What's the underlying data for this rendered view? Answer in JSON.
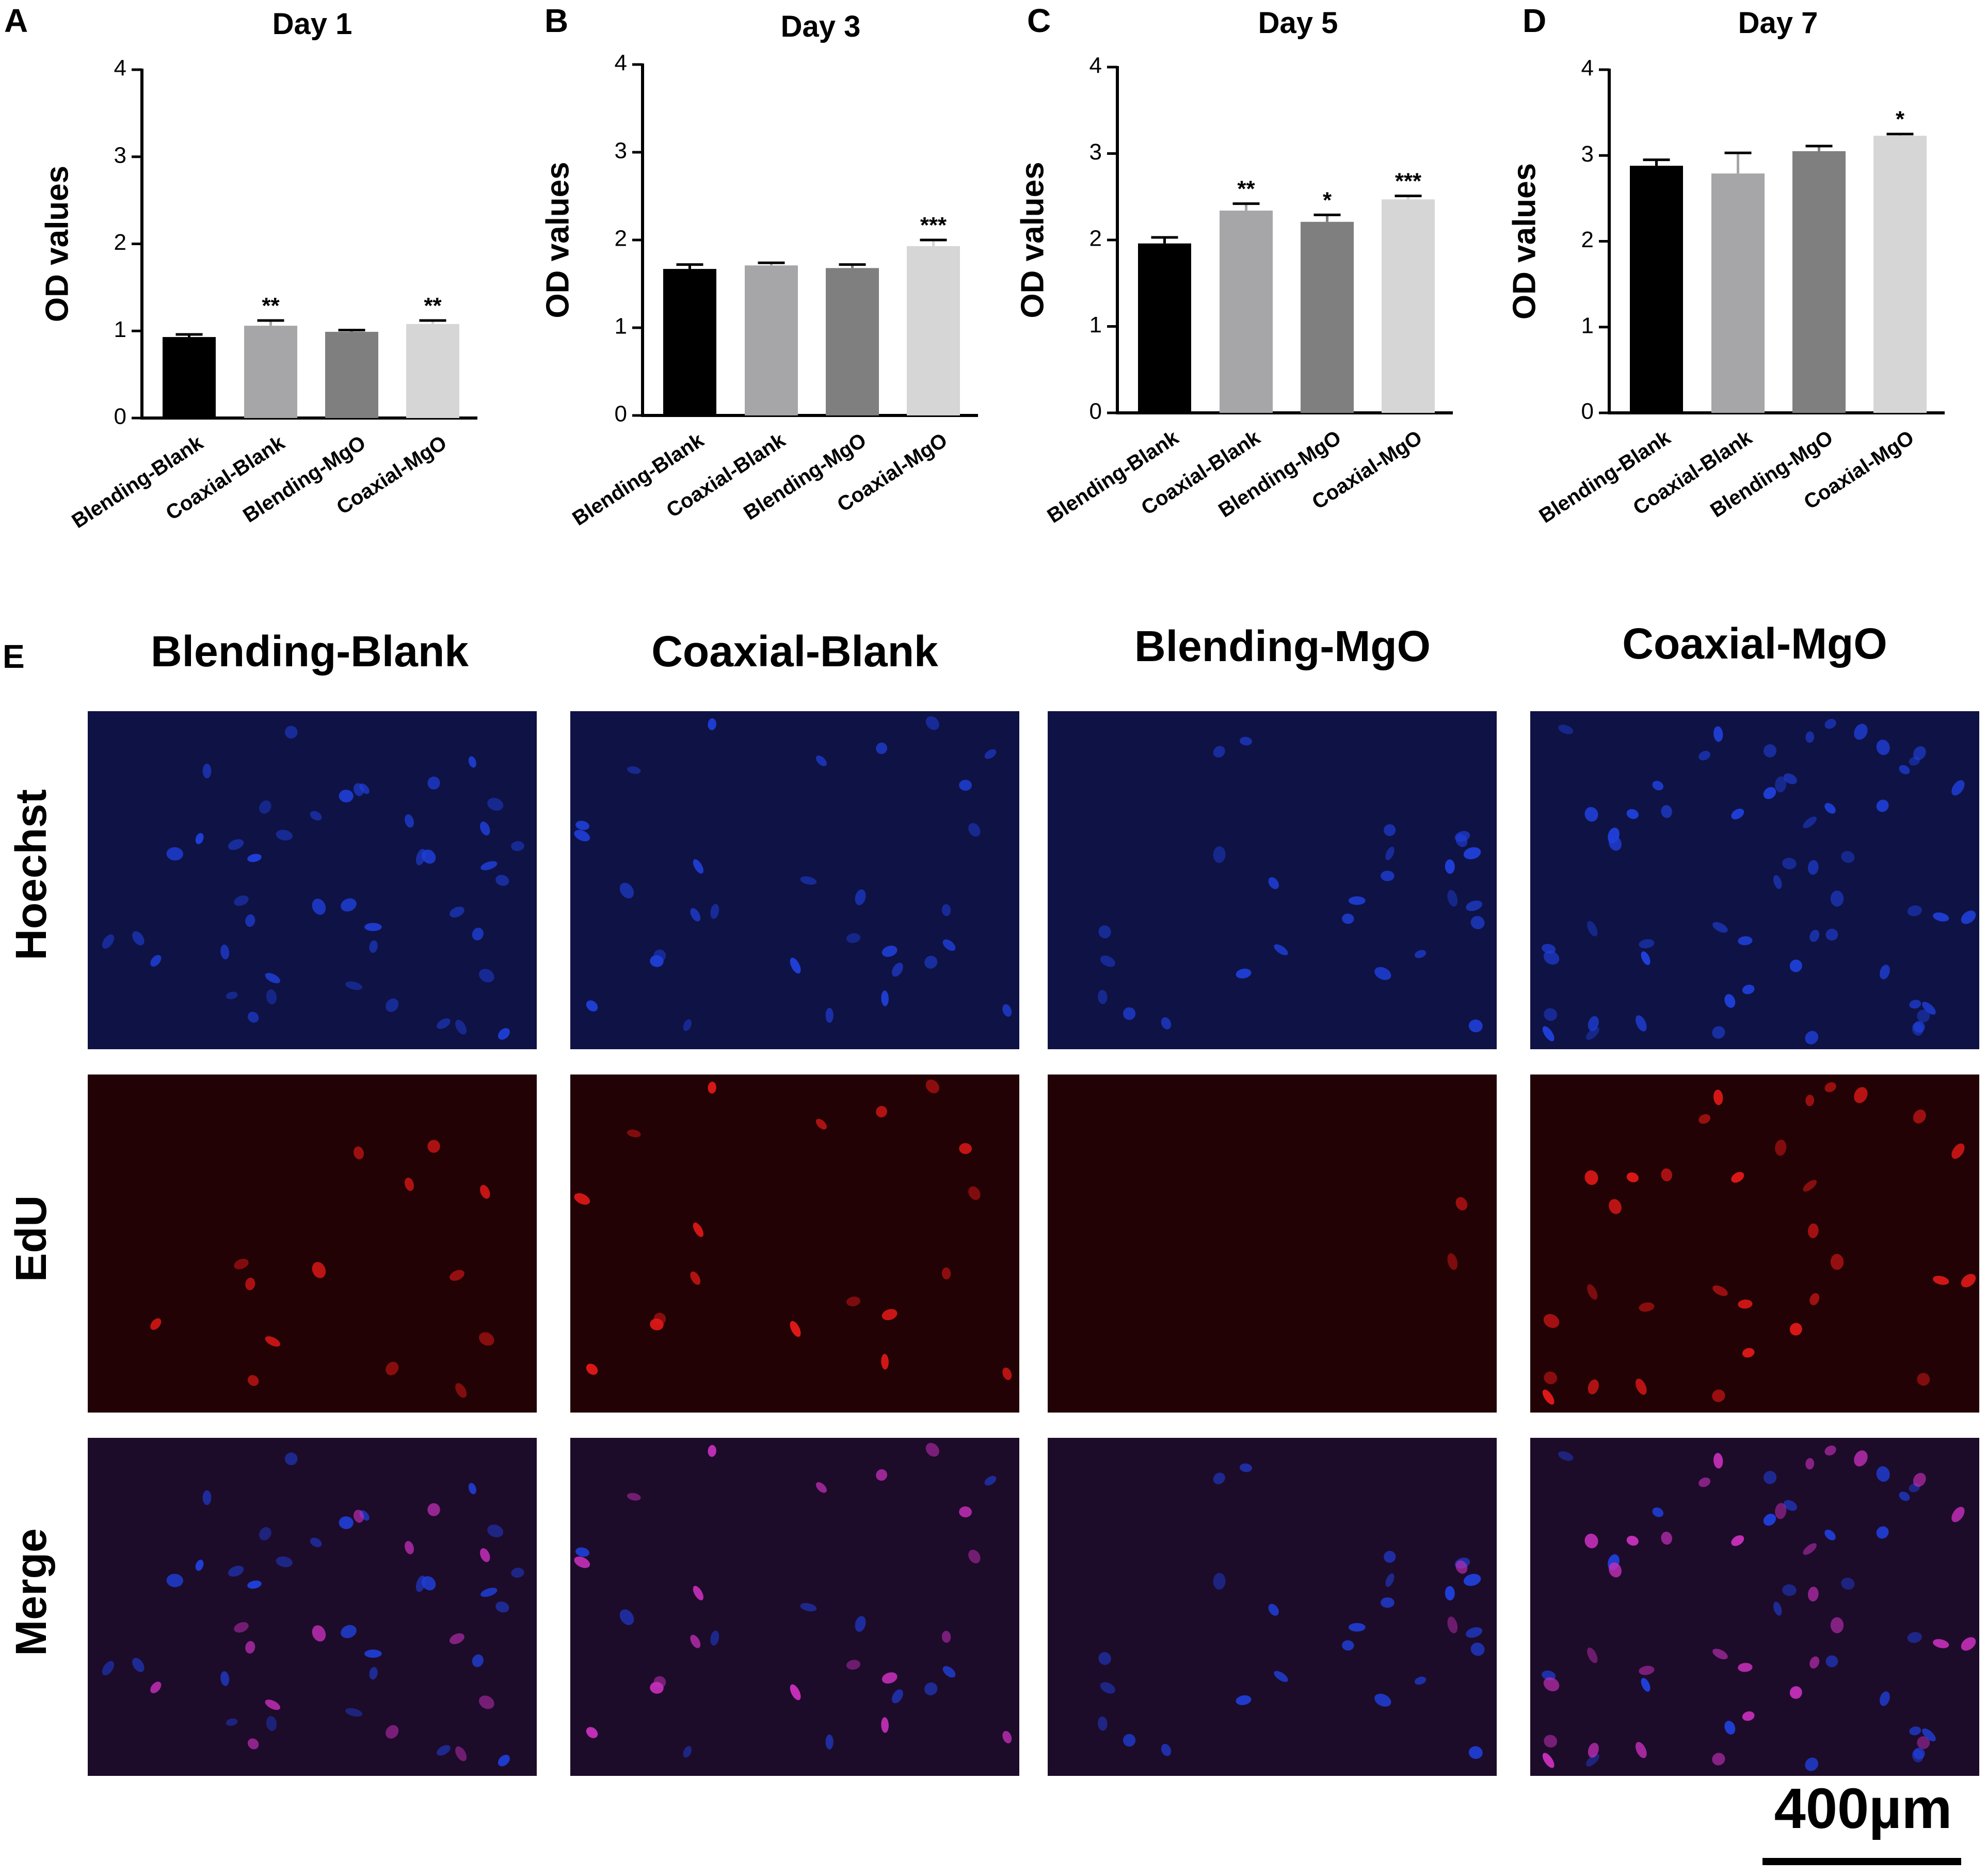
{
  "panels": [
    "A",
    "B",
    "C",
    "D",
    "E"
  ],
  "chart_data": [
    {
      "type": "bar",
      "title": "Day 1",
      "ylabel": "OD values",
      "categories": [
        "Blending-Blank",
        "Coaxial-Blank",
        "Blending-MgO",
        "Coaxial-MgO"
      ],
      "values": [
        0.93,
        1.06,
        0.99,
        1.08
      ],
      "errors": [
        0.03,
        0.06,
        0.02,
        0.04
      ],
      "significance": [
        "",
        "**",
        "",
        "**"
      ],
      "colors": [
        "#000000",
        "#a6a6a8",
        "#7f7f7f",
        "#d6d6d6"
      ],
      "ylim": [
        0,
        4
      ],
      "yticks": [
        "0",
        "1",
        "2",
        "3",
        "4"
      ],
      "grid": false
    },
    {
      "type": "bar",
      "title": "Day 3",
      "ylabel": "OD values",
      "categories": [
        "Blending-Blank",
        "Coaxial-Blank",
        "Blending-MgO",
        "Coaxial-MgO"
      ],
      "values": [
        1.67,
        1.71,
        1.68,
        1.93
      ],
      "errors": [
        0.05,
        0.03,
        0.04,
        0.07
      ],
      "significance": [
        "",
        "",
        "",
        "***"
      ],
      "colors": [
        "#000000",
        "#a6a6a8",
        "#7f7f7f",
        "#d6d6d6"
      ],
      "ylim": [
        0,
        4
      ],
      "yticks": [
        "0",
        "1",
        "2",
        "3",
        "4"
      ],
      "grid": false
    },
    {
      "type": "bar",
      "title": "Day 5",
      "ylabel": "OD values",
      "categories": [
        "Blending-Blank",
        "Coaxial-Blank",
        "Blending-MgO",
        "Coaxial-MgO"
      ],
      "values": [
        1.96,
        2.34,
        2.21,
        2.47
      ],
      "errors": [
        0.07,
        0.08,
        0.08,
        0.04
      ],
      "significance": [
        "",
        "**",
        "*",
        "***"
      ],
      "colors": [
        "#000000",
        "#a6a6a8",
        "#7f7f7f",
        "#d6d6d6"
      ],
      "ylim": [
        0,
        4
      ],
      "yticks": [
        "0",
        "1",
        "2",
        "3",
        "4"
      ],
      "grid": false
    },
    {
      "type": "bar",
      "title": "Day 7",
      "ylabel": "OD values",
      "categories": [
        "Blending-Blank",
        "Coaxial-Blank",
        "Blending-MgO",
        "Coaxial-MgO"
      ],
      "values": [
        2.88,
        2.79,
        3.05,
        3.23
      ],
      "errors": [
        0.07,
        0.24,
        0.06,
        0.02
      ],
      "significance": [
        "",
        "",
        "",
        "*"
      ],
      "colors": [
        "#000000",
        "#a6a6a8",
        "#7f7f7f",
        "#d6d6d6"
      ],
      "ylim": [
        0,
        4
      ],
      "yticks": [
        "0",
        "1",
        "2",
        "3",
        "4"
      ],
      "grid": false
    }
  ],
  "micrographs": {
    "columns": [
      "Blending-Blank",
      "Coaxial-Blank",
      "Blending-MgO",
      "Coaxial-MgO"
    ],
    "rows": [
      "Hoechst",
      "EdU",
      "Merge"
    ],
    "channel_colors": {
      "Hoechst": "#1f3fd8",
      "EdU": "#e01818",
      "Merge": "#c42fb8"
    }
  },
  "scale_bar": {
    "label": "400µm"
  }
}
